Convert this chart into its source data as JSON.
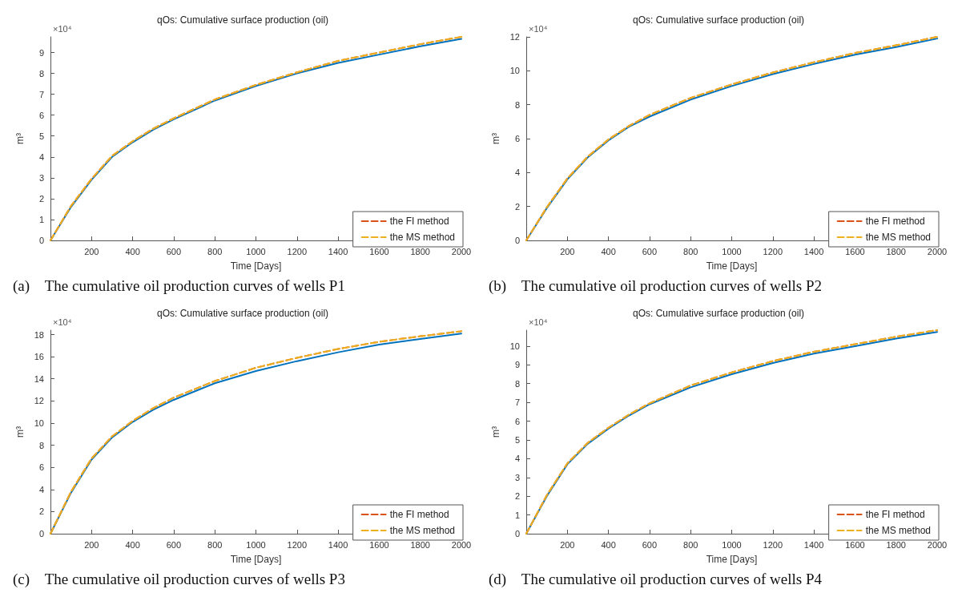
{
  "chart_data": [
    {
      "type": "line",
      "title": "qOs: Cumulative surface production (oil)",
      "xlabel": "Time [Days]",
      "ylabel": "m³",
      "xlim": [
        0,
        2000
      ],
      "xticks": [
        200,
        400,
        600,
        800,
        1000,
        1200,
        1400,
        1600,
        1800,
        2000
      ],
      "ylim": [
        0,
        9.75
      ],
      "yticks": [
        0,
        1,
        2,
        3,
        4,
        5,
        6,
        7,
        8,
        9
      ],
      "grid": false,
      "legend": "bottom right",
      "marker": "none",
      "x": [
        0,
        100,
        200,
        300,
        400,
        500,
        600,
        800,
        1000,
        1200,
        1400,
        1600,
        1800,
        2000
      ],
      "series": [
        {
          "color": "#0072bd",
          "line_style": "solid",
          "values": [
            0,
            1.6,
            2.9,
            4.0,
            4.7,
            5.3,
            5.8,
            6.7,
            7.4,
            8.0,
            8.5,
            8.9,
            9.3,
            9.65
          ]
        },
        {
          "name": "the FI method",
          "color": "#d95319",
          "line_style": "dashed",
          "values": [
            0,
            1.65,
            2.95,
            4.05,
            4.75,
            5.35,
            5.85,
            6.75,
            7.45,
            8.05,
            8.6,
            9.0,
            9.4,
            9.75
          ]
        },
        {
          "name": "the MS method",
          "color": "#edb120",
          "line_style": "dashed",
          "values": [
            0,
            1.65,
            2.95,
            4.05,
            4.75,
            5.35,
            5.85,
            6.75,
            7.45,
            8.05,
            8.6,
            9.0,
            9.4,
            9.75
          ]
        }
      ],
      "annotations": [
        "×10⁴",
        "(a)    The cumulative oil production curves of wells P1"
      ]
    },
    {
      "type": "line",
      "title": "qOs: Cumulative surface production (oil)",
      "xlabel": "Time [Days]",
      "ylabel": "m³",
      "xlim": [
        0,
        2000
      ],
      "xticks": [
        200,
        400,
        600,
        800,
        1000,
        1200,
        1400,
        1600,
        1800,
        2000
      ],
      "ylim": [
        0,
        12
      ],
      "yticks": [
        0,
        2,
        4,
        6,
        8,
        10,
        12
      ],
      "grid": false,
      "legend": "bottom right",
      "marker": "none",
      "x": [
        0,
        100,
        200,
        300,
        400,
        500,
        600,
        800,
        1000,
        1200,
        1400,
        1600,
        1800,
        2000
      ],
      "series": [
        {
          "color": "#0072bd",
          "line_style": "solid",
          "values": [
            0,
            1.9,
            3.6,
            4.9,
            5.9,
            6.7,
            7.3,
            8.3,
            9.1,
            9.8,
            10.4,
            10.95,
            11.4,
            11.9
          ]
        },
        {
          "name": "the FI method",
          "color": "#d95319",
          "line_style": "dashed",
          "values": [
            0,
            1.95,
            3.65,
            4.95,
            5.95,
            6.75,
            7.4,
            8.4,
            9.2,
            9.9,
            10.5,
            11.05,
            11.5,
            12.0
          ]
        },
        {
          "name": "the MS method",
          "color": "#edb120",
          "line_style": "dashed",
          "values": [
            0,
            1.95,
            3.65,
            4.95,
            5.95,
            6.75,
            7.4,
            8.4,
            9.2,
            9.9,
            10.5,
            11.05,
            11.5,
            12.0
          ]
        }
      ],
      "annotations": [
        "×10⁴",
        "(b)    The cumulative oil production curves of wells P2"
      ]
    },
    {
      "type": "line",
      "title": "qOs: Cumulative surface production (oil)",
      "xlabel": "Time [Days]",
      "ylabel": "m³",
      "xlim": [
        0,
        2000
      ],
      "xticks": [
        200,
        400,
        600,
        800,
        1000,
        1200,
        1400,
        1600,
        1800,
        2000
      ],
      "ylim": [
        0,
        18.4
      ],
      "yticks": [
        0,
        2,
        4,
        6,
        8,
        10,
        12,
        14,
        16,
        18
      ],
      "grid": false,
      "legend": "bottom right",
      "marker": "none",
      "x": [
        0,
        100,
        200,
        300,
        400,
        500,
        600,
        800,
        1000,
        1200,
        1400,
        1600,
        1800,
        2000
      ],
      "series": [
        {
          "color": "#0072bd",
          "line_style": "solid",
          "values": [
            0,
            3.7,
            6.7,
            8.7,
            10.1,
            11.2,
            12.1,
            13.6,
            14.7,
            15.6,
            16.4,
            17.1,
            17.6,
            18.1
          ]
        },
        {
          "name": "the FI method",
          "color": "#d95319",
          "line_style": "dashed",
          "values": [
            0,
            3.8,
            6.8,
            8.8,
            10.2,
            11.35,
            12.3,
            13.8,
            15.0,
            15.9,
            16.7,
            17.35,
            17.85,
            18.3
          ]
        },
        {
          "name": "the MS method",
          "color": "#edb120",
          "line_style": "dashed",
          "values": [
            0,
            3.8,
            6.8,
            8.8,
            10.2,
            11.35,
            12.3,
            13.8,
            15.0,
            15.9,
            16.7,
            17.35,
            17.85,
            18.3
          ]
        }
      ],
      "annotations": [
        "×10⁴",
        "(c)    The cumulative oil production curves of wells P3"
      ]
    },
    {
      "type": "line",
      "title": "qOs: Cumulative surface production (oil)",
      "xlabel": "Time [Days]",
      "ylabel": "m³",
      "xlim": [
        0,
        2000
      ],
      "xticks": [
        200,
        400,
        600,
        800,
        1000,
        1200,
        1400,
        1600,
        1800,
        2000
      ],
      "ylim": [
        0,
        10.85
      ],
      "yticks": [
        0,
        1,
        2,
        3,
        4,
        5,
        6,
        7,
        8,
        9,
        10
      ],
      "grid": false,
      "legend": "bottom right",
      "marker": "none",
      "x": [
        0,
        100,
        200,
        300,
        400,
        500,
        600,
        800,
        1000,
        1200,
        1400,
        1600,
        1800,
        2000
      ],
      "series": [
        {
          "color": "#0072bd",
          "line_style": "solid",
          "values": [
            0,
            2.0,
            3.7,
            4.8,
            5.6,
            6.3,
            6.9,
            7.8,
            8.5,
            9.1,
            9.6,
            10.0,
            10.4,
            10.75
          ]
        },
        {
          "name": "the FI method",
          "color": "#d95319",
          "line_style": "dashed",
          "values": [
            0,
            2.05,
            3.75,
            4.85,
            5.65,
            6.35,
            6.95,
            7.9,
            8.6,
            9.2,
            9.7,
            10.1,
            10.5,
            10.85
          ]
        },
        {
          "name": "the MS method",
          "color": "#edb120",
          "line_style": "dashed",
          "values": [
            0,
            2.05,
            3.75,
            4.85,
            5.65,
            6.35,
            6.95,
            7.9,
            8.6,
            9.2,
            9.7,
            10.1,
            10.5,
            10.85
          ]
        }
      ],
      "annotations": [
        "×10⁴",
        "(d)    The cumulative oil production curves of wells P4"
      ]
    }
  ]
}
